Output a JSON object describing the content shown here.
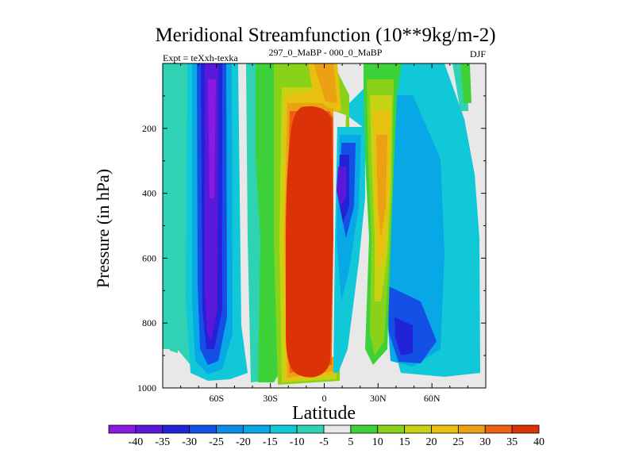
{
  "chart_data": {
    "type": "contour",
    "title": "Meridional Streamfunction (10**9kg/m-2)",
    "expt_label": "Expt = teXxh-texka",
    "period_label": "297_0_MaBP - 000_0_MaBP",
    "season_label": "DJF",
    "xlabel": "Latitude",
    "ylabel": "Pressure (in hPa)",
    "xlim": [
      -90,
      90
    ],
    "ylim": [
      1000,
      0
    ],
    "x_ticks": [
      {
        "value": -60,
        "label": "60S"
      },
      {
        "value": -30,
        "label": "30S"
      },
      {
        "value": 0,
        "label": "0"
      },
      {
        "value": 30,
        "label": "30N"
      },
      {
        "value": 60,
        "label": "60N"
      }
    ],
    "y_ticks": [
      {
        "value": 200,
        "label": "200"
      },
      {
        "value": 400,
        "label": "400"
      },
      {
        "value": 600,
        "label": "600"
      },
      {
        "value": 800,
        "label": "800"
      },
      {
        "value": 1000,
        "label": "1000"
      }
    ],
    "colorbar": {
      "levels": [
        "-40",
        "-35",
        "-30",
        "-25",
        "-20",
        "-15",
        "-10",
        "-5",
        "5",
        "10",
        "15",
        "20",
        "25",
        "30",
        "35",
        "40"
      ],
      "colors": [
        "#8a1ae0",
        "#5a18d8",
        "#2222d8",
        "#1450e6",
        "#0c8ae8",
        "#08a8e6",
        "#10c8d8",
        "#30d2b4",
        "#e8e8e8",
        "#3ed23a",
        "#8ad21a",
        "#c8d214",
        "#e8c010",
        "#eca014",
        "#ec6010",
        "#dc3208"
      ]
    },
    "background_color": "#e8e8e8",
    "features": [
      {
        "name": "southern-polar-cell",
        "sign": "negative",
        "max_value": -40,
        "center_latitude": -63,
        "pressure_range": [
          0,
          950
        ]
      },
      {
        "name": "tropical-cell",
        "sign": "positive",
        "max_value": 40,
        "center_latitude": -12,
        "pressure_range": [
          150,
          980
        ]
      },
      {
        "name": "northern-subtropical-cell",
        "sign": "negative",
        "max_value": -30,
        "center_latitude": 10,
        "pressure_range": [
          150,
          650
        ]
      },
      {
        "name": "northern-midlatitude-cell",
        "sign": "positive",
        "max_value": 25,
        "center_latitude": 30,
        "pressure_range": [
          150,
          550
        ]
      },
      {
        "name": "northern-ferrel-cell",
        "sign": "negative",
        "max_value": -30,
        "center_latitude": 42,
        "pressure_range": [
          550,
          960
        ]
      }
    ]
  }
}
